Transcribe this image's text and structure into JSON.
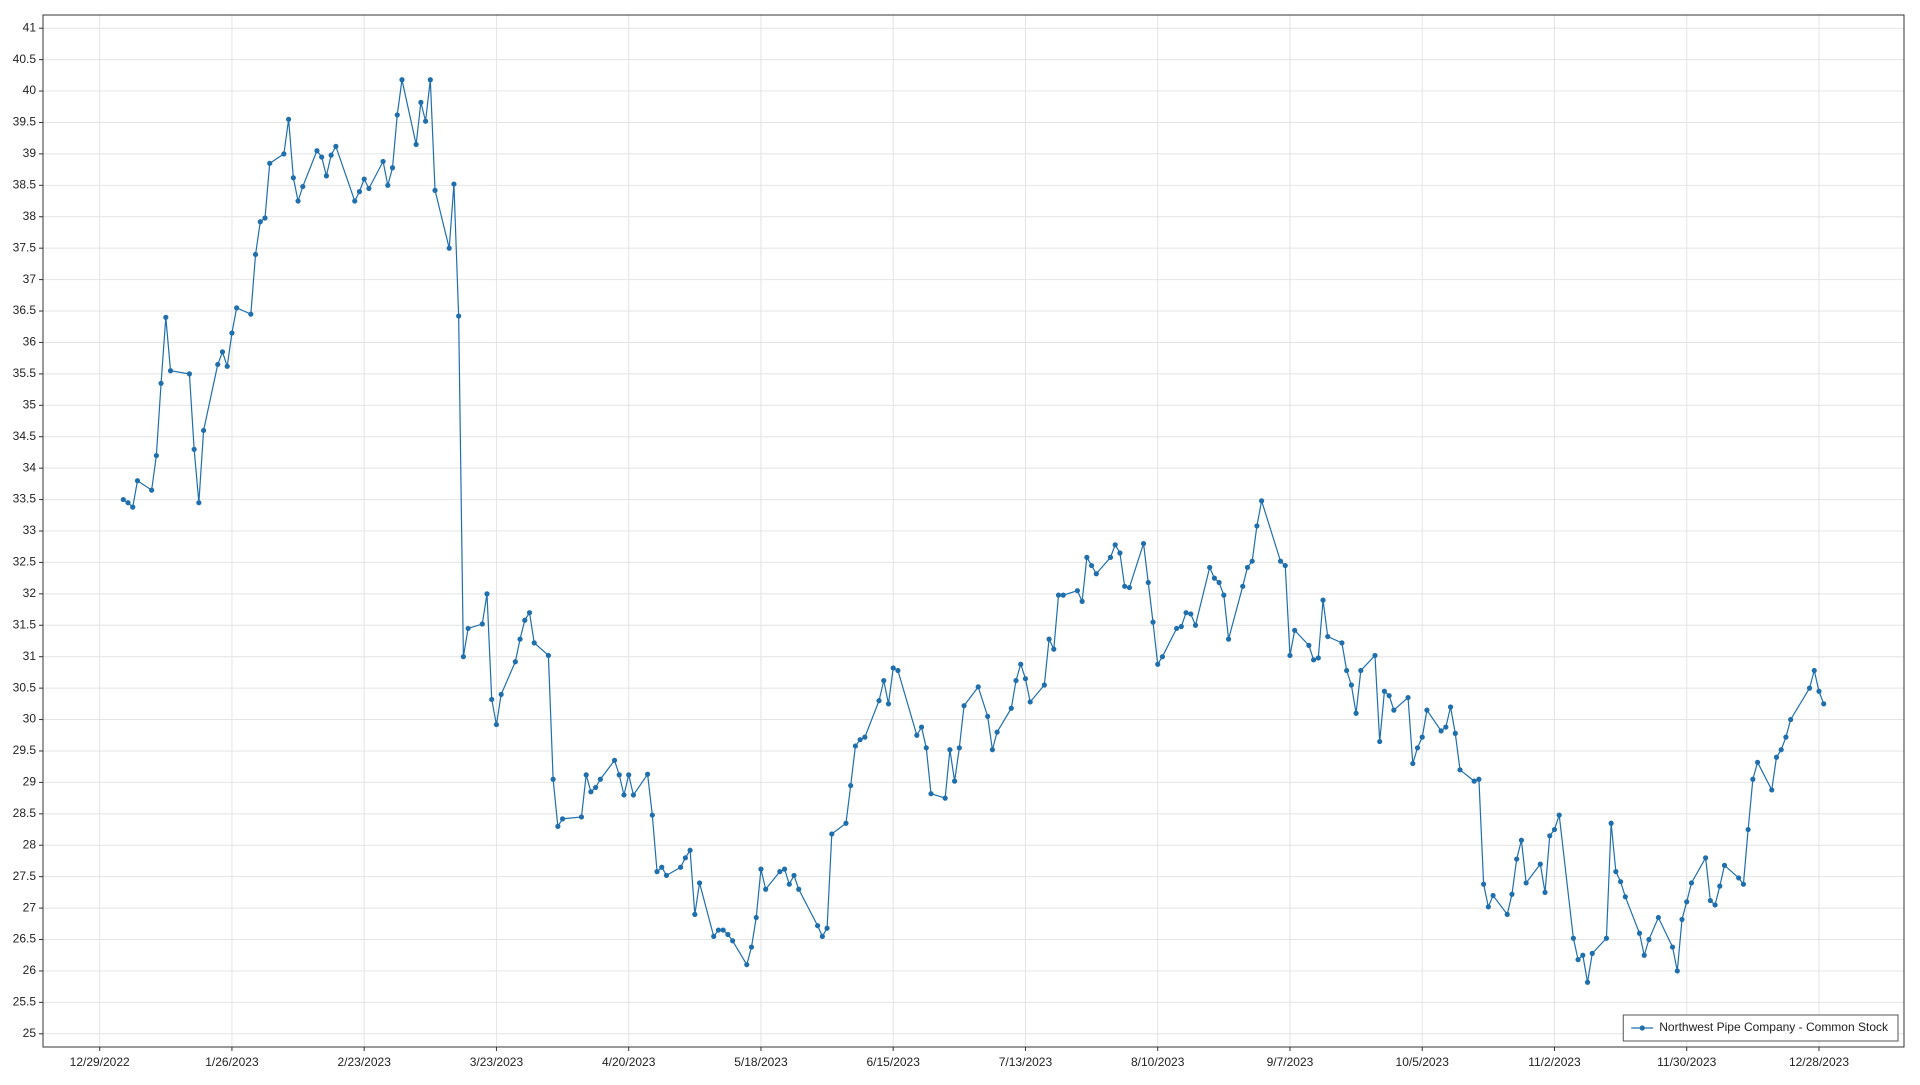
{
  "chart_data": {
    "type": "line",
    "series": [
      {
        "name": "Northwest Pipe Company - Common Stock",
        "color": "#1f6fad",
        "x": [
          "2023-01-03",
          "2023-01-04",
          "2023-01-05",
          "2023-01-06",
          "2023-01-09",
          "2023-01-10",
          "2023-01-11",
          "2023-01-12",
          "2023-01-13",
          "2023-01-17",
          "2023-01-18",
          "2023-01-19",
          "2023-01-20",
          "2023-01-23",
          "2023-01-24",
          "2023-01-25",
          "2023-01-26",
          "2023-01-27",
          "2023-01-30",
          "2023-01-31",
          "2023-02-01",
          "2023-02-02",
          "2023-02-03",
          "2023-02-06",
          "2023-02-07",
          "2023-02-08",
          "2023-02-09",
          "2023-02-10",
          "2023-02-13",
          "2023-02-14",
          "2023-02-15",
          "2023-02-16",
          "2023-02-17",
          "2023-02-21",
          "2023-02-22",
          "2023-02-23",
          "2023-02-24",
          "2023-02-27",
          "2023-02-28",
          "2023-03-01",
          "2023-03-02",
          "2023-03-03",
          "2023-03-06",
          "2023-03-07",
          "2023-03-08",
          "2023-03-09",
          "2023-03-10",
          "2023-03-13",
          "2023-03-14",
          "2023-03-15",
          "2023-03-16",
          "2023-03-17",
          "2023-03-20",
          "2023-03-21",
          "2023-03-22",
          "2023-03-23",
          "2023-03-24",
          "2023-03-27",
          "2023-03-28",
          "2023-03-29",
          "2023-03-30",
          "2023-03-31",
          "2023-04-03",
          "2023-04-04",
          "2023-04-05",
          "2023-04-06",
          "2023-04-10",
          "2023-04-11",
          "2023-04-12",
          "2023-04-13",
          "2023-04-14",
          "2023-04-17",
          "2023-04-18",
          "2023-04-19",
          "2023-04-20",
          "2023-04-21",
          "2023-04-24",
          "2023-04-25",
          "2023-04-26",
          "2023-04-27",
          "2023-04-28",
          "2023-05-01",
          "2023-05-02",
          "2023-05-03",
          "2023-05-04",
          "2023-05-05",
          "2023-05-08",
          "2023-05-09",
          "2023-05-10",
          "2023-05-11",
          "2023-05-12",
          "2023-05-15",
          "2023-05-16",
          "2023-05-17",
          "2023-05-18",
          "2023-05-19",
          "2023-05-22",
          "2023-05-23",
          "2023-05-24",
          "2023-05-25",
          "2023-05-26",
          "2023-05-30",
          "2023-05-31",
          "2023-06-01",
          "2023-06-02",
          "2023-06-05",
          "2023-06-06",
          "2023-06-07",
          "2023-06-08",
          "2023-06-09",
          "2023-06-12",
          "2023-06-13",
          "2023-06-14",
          "2023-06-15",
          "2023-06-16",
          "2023-06-20",
          "2023-06-21",
          "2023-06-22",
          "2023-06-23",
          "2023-06-26",
          "2023-06-27",
          "2023-06-28",
          "2023-06-29",
          "2023-06-30",
          "2023-07-03",
          "2023-07-05",
          "2023-07-06",
          "2023-07-07",
          "2023-07-10",
          "2023-07-11",
          "2023-07-12",
          "2023-07-13",
          "2023-07-14",
          "2023-07-17",
          "2023-07-18",
          "2023-07-19",
          "2023-07-20",
          "2023-07-21",
          "2023-07-24",
          "2023-07-25",
          "2023-07-26",
          "2023-07-27",
          "2023-07-28",
          "2023-07-31",
          "2023-08-01",
          "2023-08-02",
          "2023-08-03",
          "2023-08-04",
          "2023-08-07",
          "2023-08-08",
          "2023-08-09",
          "2023-08-10",
          "2023-08-11",
          "2023-08-14",
          "2023-08-15",
          "2023-08-16",
          "2023-08-17",
          "2023-08-18",
          "2023-08-21",
          "2023-08-22",
          "2023-08-23",
          "2023-08-24",
          "2023-08-25",
          "2023-08-28",
          "2023-08-29",
          "2023-08-30",
          "2023-08-31",
          "2023-09-01",
          "2023-09-05",
          "2023-09-06",
          "2023-09-07",
          "2023-09-08",
          "2023-09-11",
          "2023-09-12",
          "2023-09-13",
          "2023-09-14",
          "2023-09-15",
          "2023-09-18",
          "2023-09-19",
          "2023-09-20",
          "2023-09-21",
          "2023-09-22",
          "2023-09-25",
          "2023-09-26",
          "2023-09-27",
          "2023-09-28",
          "2023-09-29",
          "2023-10-02",
          "2023-10-03",
          "2023-10-04",
          "2023-10-05",
          "2023-10-06",
          "2023-10-09",
          "2023-10-10",
          "2023-10-11",
          "2023-10-12",
          "2023-10-13",
          "2023-10-16",
          "2023-10-17",
          "2023-10-18",
          "2023-10-19",
          "2023-10-20",
          "2023-10-23",
          "2023-10-24",
          "2023-10-25",
          "2023-10-26",
          "2023-10-27",
          "2023-10-30",
          "2023-10-31",
          "2023-11-01",
          "2023-11-02",
          "2023-11-03",
          "2023-11-06",
          "2023-11-07",
          "2023-11-08",
          "2023-11-09",
          "2023-11-10",
          "2023-11-13",
          "2023-11-14",
          "2023-11-15",
          "2023-11-16",
          "2023-11-17",
          "2023-11-20",
          "2023-11-21",
          "2023-11-22",
          "2023-11-24",
          "2023-11-27",
          "2023-11-28",
          "2023-11-29",
          "2023-11-30",
          "2023-12-01",
          "2023-12-04",
          "2023-12-05",
          "2023-12-06",
          "2023-12-07",
          "2023-12-08",
          "2023-12-11",
          "2023-12-12",
          "2023-12-13",
          "2023-12-14",
          "2023-12-15",
          "2023-12-18",
          "2023-12-19",
          "2023-12-20",
          "2023-12-21",
          "2023-12-22",
          "2023-12-26",
          "2023-12-27",
          "2023-12-28",
          "2023-12-29"
        ],
        "values": [
          33.5,
          33.45,
          33.38,
          33.8,
          33.65,
          34.2,
          35.35,
          36.4,
          35.55,
          35.5,
          34.3,
          33.45,
          34.6,
          35.65,
          35.85,
          35.62,
          36.15,
          36.55,
          36.45,
          37.4,
          37.92,
          37.98,
          38.85,
          39.0,
          39.55,
          38.62,
          38.25,
          38.48,
          39.05,
          38.95,
          38.65,
          38.98,
          39.12,
          38.25,
          38.4,
          38.6,
          38.45,
          38.88,
          38.5,
          38.78,
          39.62,
          40.18,
          39.15,
          39.82,
          39.52,
          40.18,
          38.42,
          37.5,
          38.52,
          36.42,
          31.0,
          31.45,
          31.52,
          32.0,
          30.32,
          29.92,
          30.4,
          30.92,
          31.28,
          31.58,
          31.7,
          31.22,
          31.02,
          29.05,
          28.3,
          28.42,
          28.45,
          29.12,
          28.85,
          28.92,
          29.05,
          29.35,
          29.12,
          28.8,
          29.12,
          28.8,
          29.13,
          28.48,
          27.58,
          27.65,
          27.52,
          27.65,
          27.8,
          27.92,
          26.9,
          27.4,
          26.55,
          26.65,
          26.65,
          26.58,
          26.48,
          26.1,
          26.38,
          26.85,
          27.62,
          27.3,
          27.58,
          27.62,
          27.38,
          27.52,
          27.3,
          26.72,
          26.55,
          26.68,
          28.18,
          28.35,
          28.95,
          29.58,
          29.68,
          29.72,
          30.3,
          30.62,
          30.25,
          30.82,
          30.78,
          29.75,
          29.88,
          29.55,
          28.82,
          28.75,
          29.52,
          29.02,
          29.55,
          30.22,
          30.52,
          30.05,
          29.52,
          29.8,
          30.18,
          30.62,
          30.88,
          30.65,
          30.28,
          30.55,
          31.28,
          31.12,
          31.98,
          31.98,
          32.05,
          31.88,
          32.58,
          32.45,
          32.32,
          32.58,
          32.78,
          32.65,
          32.12,
          32.1,
          32.8,
          32.18,
          31.55,
          30.88,
          31.0,
          31.45,
          31.48,
          31.7,
          31.68,
          31.5,
          32.42,
          32.25,
          32.18,
          31.98,
          31.28,
          32.12,
          32.42,
          32.52,
          33.08,
          33.48,
          32.52,
          32.45,
          31.02,
          31.42,
          31.18,
          30.95,
          30.98,
          31.9,
          31.32,
          31.22,
          30.78,
          30.55,
          30.1,
          30.78,
          31.02,
          29.65,
          30.45,
          30.38,
          30.15,
          30.35,
          29.3,
          29.55,
          29.72,
          30.15,
          29.82,
          29.88,
          30.2,
          29.78,
          29.2,
          29.02,
          29.05,
          27.38,
          27.02,
          27.2,
          26.9,
          27.22,
          27.78,
          28.08,
          27.4,
          27.7,
          27.25,
          28.15,
          28.25,
          28.48,
          26.52,
          26.18,
          26.25,
          25.82,
          26.28,
          26.52,
          28.35,
          27.58,
          27.42,
          27.18,
          26.6,
          26.25,
          26.5,
          26.85,
          26.38,
          26.0,
          26.82,
          27.1,
          27.4,
          27.8,
          27.12,
          27.05,
          27.35,
          27.68,
          27.48,
          27.38,
          28.25,
          29.05,
          29.32,
          28.88,
          29.4,
          29.52,
          29.72,
          30.0,
          30.5,
          30.78,
          30.45,
          30.25
        ]
      }
    ],
    "xlim": [
      "2022-12-17",
      "2024-01-15"
    ],
    "xticks": [
      {
        "value": "2022-12-29",
        "label": "12/29/2022"
      },
      {
        "value": "2023-01-26",
        "label": "1/26/2023"
      },
      {
        "value": "2023-02-23",
        "label": "2/23/2023"
      },
      {
        "value": "2023-03-23",
        "label": "3/23/2023"
      },
      {
        "value": "2023-04-20",
        "label": "4/20/2023"
      },
      {
        "value": "2023-05-18",
        "label": "5/18/2023"
      },
      {
        "value": "2023-06-15",
        "label": "6/15/2023"
      },
      {
        "value": "2023-07-13",
        "label": "7/13/2023"
      },
      {
        "value": "2023-08-10",
        "label": "8/10/2023"
      },
      {
        "value": "2023-09-07",
        "label": "9/7/2023"
      },
      {
        "value": "2023-10-05",
        "label": "10/5/2023"
      },
      {
        "value": "2023-11-02",
        "label": "11/2/2023"
      },
      {
        "value": "2023-11-30",
        "label": "11/30/2023"
      },
      {
        "value": "2023-12-28",
        "label": "12/28/2023"
      }
    ],
    "ylim": [
      24.79,
      41.21
    ],
    "yticks": [
      25,
      25.5,
      26,
      26.5,
      27,
      27.5,
      28,
      28.5,
      29,
      29.5,
      30,
      30.5,
      31,
      31.5,
      32,
      32.5,
      33,
      33.5,
      34,
      34.5,
      35,
      35.5,
      36,
      36.5,
      37,
      37.5,
      38,
      38.5,
      39,
      39.5,
      40,
      40.5,
      41
    ],
    "grid": true,
    "legend": "lower right"
  }
}
